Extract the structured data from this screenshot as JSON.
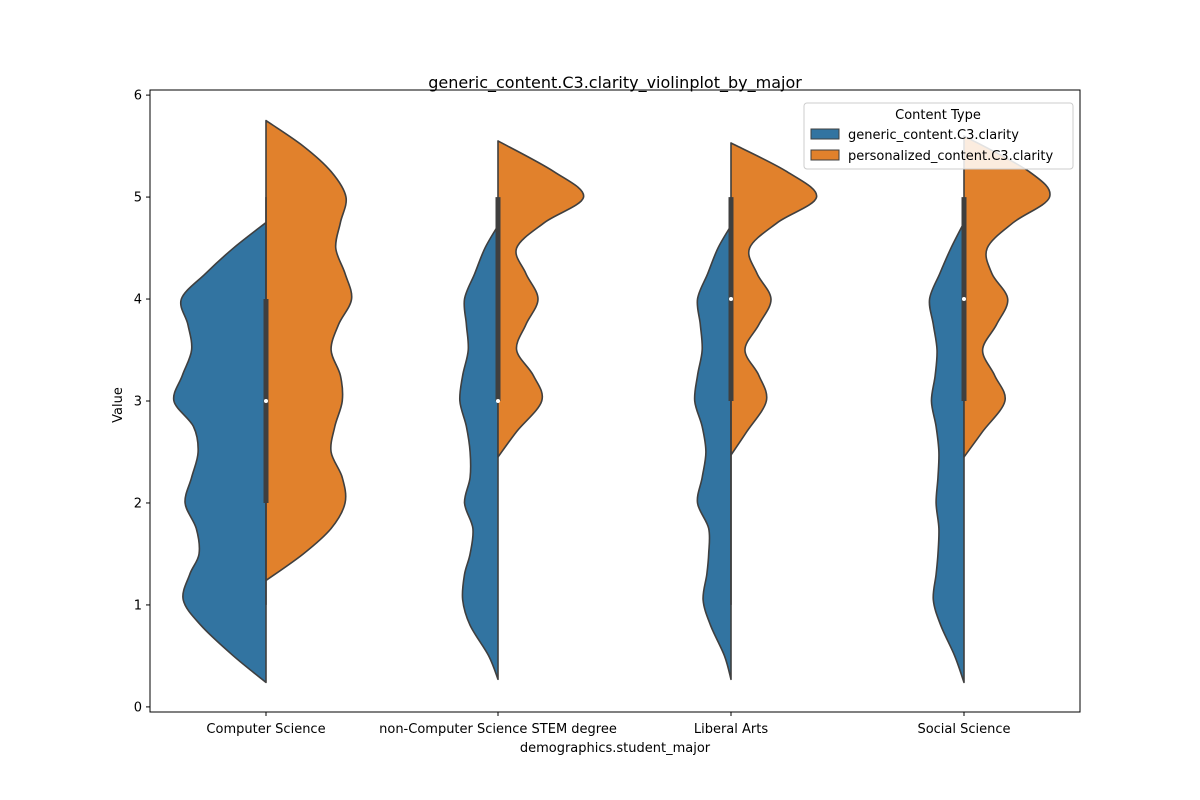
{
  "chart_data": {
    "type": "violin",
    "title": "generic_content.C3.clarity_violinplot_by_major",
    "xlabel": "demographics.student_major",
    "ylabel": "Value",
    "ylim": [
      -0.05,
      6.05
    ],
    "yticks": [
      0,
      1,
      2,
      3,
      4,
      5,
      6
    ],
    "categories": [
      "Computer Science",
      "non-Computer Science STEM degree",
      "Liberal Arts",
      "Social Science"
    ],
    "legend": {
      "title": "Content Type",
      "position": "top-right"
    },
    "series": [
      {
        "name": "generic_content.C3.clarity",
        "color": "#3274a1",
        "side": "left",
        "violins": [
          {
            "ymin": 0.24,
            "ymax": 4.75,
            "profile": [
              [
                0.24,
                0.0
              ],
              [
                0.5,
                0.35
              ],
              [
                0.8,
                0.7
              ],
              [
                1.05,
                0.89
              ],
              [
                1.3,
                0.82
              ],
              [
                1.5,
                0.72
              ],
              [
                1.75,
                0.75
              ],
              [
                2.0,
                0.87
              ],
              [
                2.25,
                0.8
              ],
              [
                2.5,
                0.73
              ],
              [
                2.75,
                0.78
              ],
              [
                3.0,
                0.99
              ],
              [
                3.25,
                0.9
              ],
              [
                3.5,
                0.8
              ],
              [
                3.75,
                0.84
              ],
              [
                4.0,
                0.91
              ],
              [
                4.25,
                0.65
              ],
              [
                4.5,
                0.35
              ],
              [
                4.75,
                0.0
              ]
            ]
          },
          {
            "ymin": 0.27,
            "ymax": 4.72,
            "profile": [
              [
                0.27,
                0.0
              ],
              [
                0.5,
                0.1
              ],
              [
                0.8,
                0.3
              ],
              [
                1.05,
                0.38
              ],
              [
                1.3,
                0.36
              ],
              [
                1.5,
                0.3
              ],
              [
                1.75,
                0.27
              ],
              [
                2.0,
                0.36
              ],
              [
                2.25,
                0.3
              ],
              [
                2.5,
                0.3
              ],
              [
                2.75,
                0.34
              ],
              [
                3.0,
                0.41
              ],
              [
                3.25,
                0.38
              ],
              [
                3.5,
                0.32
              ],
              [
                3.75,
                0.34
              ],
              [
                4.0,
                0.36
              ],
              [
                4.25,
                0.25
              ],
              [
                4.5,
                0.14
              ],
              [
                4.72,
                0.0
              ]
            ]
          },
          {
            "ymin": 0.27,
            "ymax": 4.72,
            "profile": [
              [
                0.27,
                0.0
              ],
              [
                0.5,
                0.07
              ],
              [
                0.8,
                0.22
              ],
              [
                1.05,
                0.3
              ],
              [
                1.3,
                0.26
              ],
              [
                1.5,
                0.24
              ],
              [
                1.75,
                0.24
              ],
              [
                2.0,
                0.36
              ],
              [
                2.25,
                0.31
              ],
              [
                2.5,
                0.27
              ],
              [
                2.75,
                0.31
              ],
              [
                3.0,
                0.39
              ],
              [
                3.25,
                0.36
              ],
              [
                3.5,
                0.31
              ],
              [
                3.75,
                0.33
              ],
              [
                4.0,
                0.36
              ],
              [
                4.25,
                0.25
              ],
              [
                4.5,
                0.14
              ],
              [
                4.72,
                0.0
              ]
            ]
          },
          {
            "ymin": 0.24,
            "ymax": 4.75,
            "profile": [
              [
                0.24,
                0.0
              ],
              [
                0.5,
                0.1
              ],
              [
                0.8,
                0.25
              ],
              [
                1.05,
                0.33
              ],
              [
                1.3,
                0.3
              ],
              [
                1.5,
                0.28
              ],
              [
                1.75,
                0.27
              ],
              [
                2.0,
                0.3
              ],
              [
                2.25,
                0.28
              ],
              [
                2.5,
                0.27
              ],
              [
                2.75,
                0.3
              ],
              [
                3.0,
                0.35
              ],
              [
                3.25,
                0.31
              ],
              [
                3.5,
                0.29
              ],
              [
                3.75,
                0.33
              ],
              [
                4.0,
                0.37
              ],
              [
                4.25,
                0.26
              ],
              [
                4.5,
                0.14
              ],
              [
                4.75,
                0.0
              ]
            ]
          }
        ]
      },
      {
        "name": "personalized_content.C3.clarity",
        "color": "#e1812c",
        "side": "right",
        "violins": [
          {
            "ymin": 1.24,
            "ymax": 5.75,
            "profile": [
              [
                1.24,
                0.0
              ],
              [
                1.5,
                0.4
              ],
              [
                1.75,
                0.7
              ],
              [
                2.0,
                0.85
              ],
              [
                2.25,
                0.82
              ],
              [
                2.5,
                0.7
              ],
              [
                2.75,
                0.74
              ],
              [
                3.0,
                0.82
              ],
              [
                3.25,
                0.8
              ],
              [
                3.5,
                0.7
              ],
              [
                3.75,
                0.78
              ],
              [
                4.0,
                0.92
              ],
              [
                4.25,
                0.85
              ],
              [
                4.5,
                0.75
              ],
              [
                4.75,
                0.8
              ],
              [
                5.0,
                0.86
              ],
              [
                5.25,
                0.7
              ],
              [
                5.5,
                0.4
              ],
              [
                5.75,
                0.0
              ]
            ]
          },
          {
            "ymin": 2.45,
            "ymax": 5.55,
            "profile": [
              [
                2.45,
                0.0
              ],
              [
                2.7,
                0.2
              ],
              [
                3.0,
                0.47
              ],
              [
                3.25,
                0.38
              ],
              [
                3.5,
                0.2
              ],
              [
                3.75,
                0.3
              ],
              [
                4.0,
                0.43
              ],
              [
                4.25,
                0.3
              ],
              [
                4.5,
                0.2
              ],
              [
                4.75,
                0.5
              ],
              [
                5.0,
                0.92
              ],
              [
                5.25,
                0.6
              ],
              [
                5.55,
                0.0
              ]
            ]
          },
          {
            "ymin": 2.47,
            "ymax": 5.53,
            "profile": [
              [
                2.47,
                0.0
              ],
              [
                2.7,
                0.17
              ],
              [
                3.0,
                0.38
              ],
              [
                3.25,
                0.3
              ],
              [
                3.5,
                0.15
              ],
              [
                3.75,
                0.3
              ],
              [
                4.0,
                0.43
              ],
              [
                4.25,
                0.28
              ],
              [
                4.5,
                0.2
              ],
              [
                4.75,
                0.5
              ],
              [
                5.0,
                0.92
              ],
              [
                5.25,
                0.6
              ],
              [
                5.53,
                0.0
              ]
            ]
          },
          {
            "ymin": 2.45,
            "ymax": 5.6,
            "profile": [
              [
                2.45,
                0.0
              ],
              [
                2.7,
                0.2
              ],
              [
                3.0,
                0.44
              ],
              [
                3.25,
                0.33
              ],
              [
                3.5,
                0.2
              ],
              [
                3.75,
                0.35
              ],
              [
                4.0,
                0.47
              ],
              [
                4.25,
                0.3
              ],
              [
                4.5,
                0.25
              ],
              [
                4.75,
                0.53
              ],
              [
                5.0,
                0.92
              ],
              [
                5.25,
                0.7
              ],
              [
                5.6,
                0.0
              ]
            ]
          }
        ]
      }
    ],
    "boxes": [
      {
        "q1": 2.0,
        "median": 3.0,
        "q3": 4.0,
        "whisker_low": 1.0,
        "whisker_high": 5.0
      },
      {
        "q1": 3.0,
        "median": 3.0,
        "q3": 5.0,
        "whisker_low": 3.0,
        "whisker_high": 5.0
      },
      {
        "q1": 3.0,
        "median": 4.0,
        "q3": 5.0,
        "whisker_low": 1.0,
        "whisker_high": 5.0
      },
      {
        "q1": 3.0,
        "median": 4.0,
        "q3": 5.0,
        "whisker_low": 3.0,
        "whisker_high": 5.0
      }
    ]
  }
}
